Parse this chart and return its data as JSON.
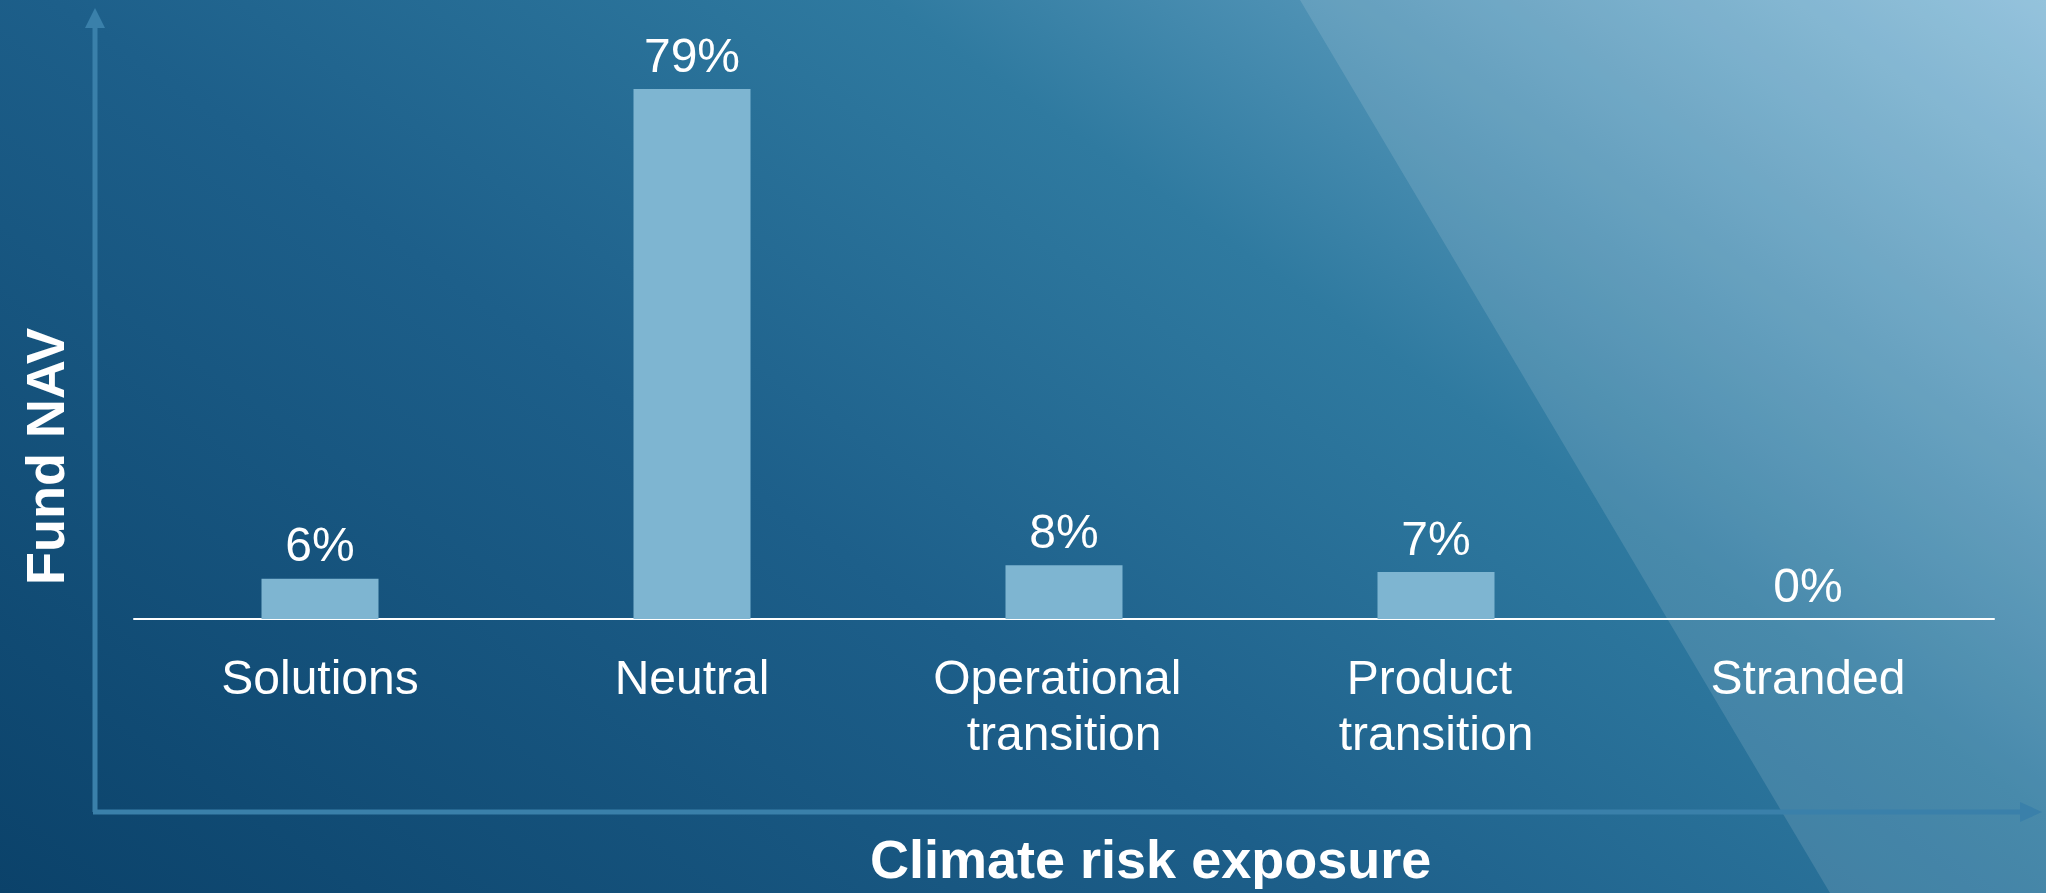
{
  "chart_data": {
    "type": "bar",
    "xlabel": "Climate risk exposure",
    "ylabel": "Fund NAV",
    "categories": [
      "Solutions",
      "Neutral",
      "Operational transition",
      "Product transition",
      "Stranded"
    ],
    "values": [
      6,
      79,
      8,
      7,
      0
    ],
    "value_labels": [
      "6%",
      "79%",
      "8%",
      "7%",
      "0%"
    ],
    "color": "#7eb5d1"
  }
}
